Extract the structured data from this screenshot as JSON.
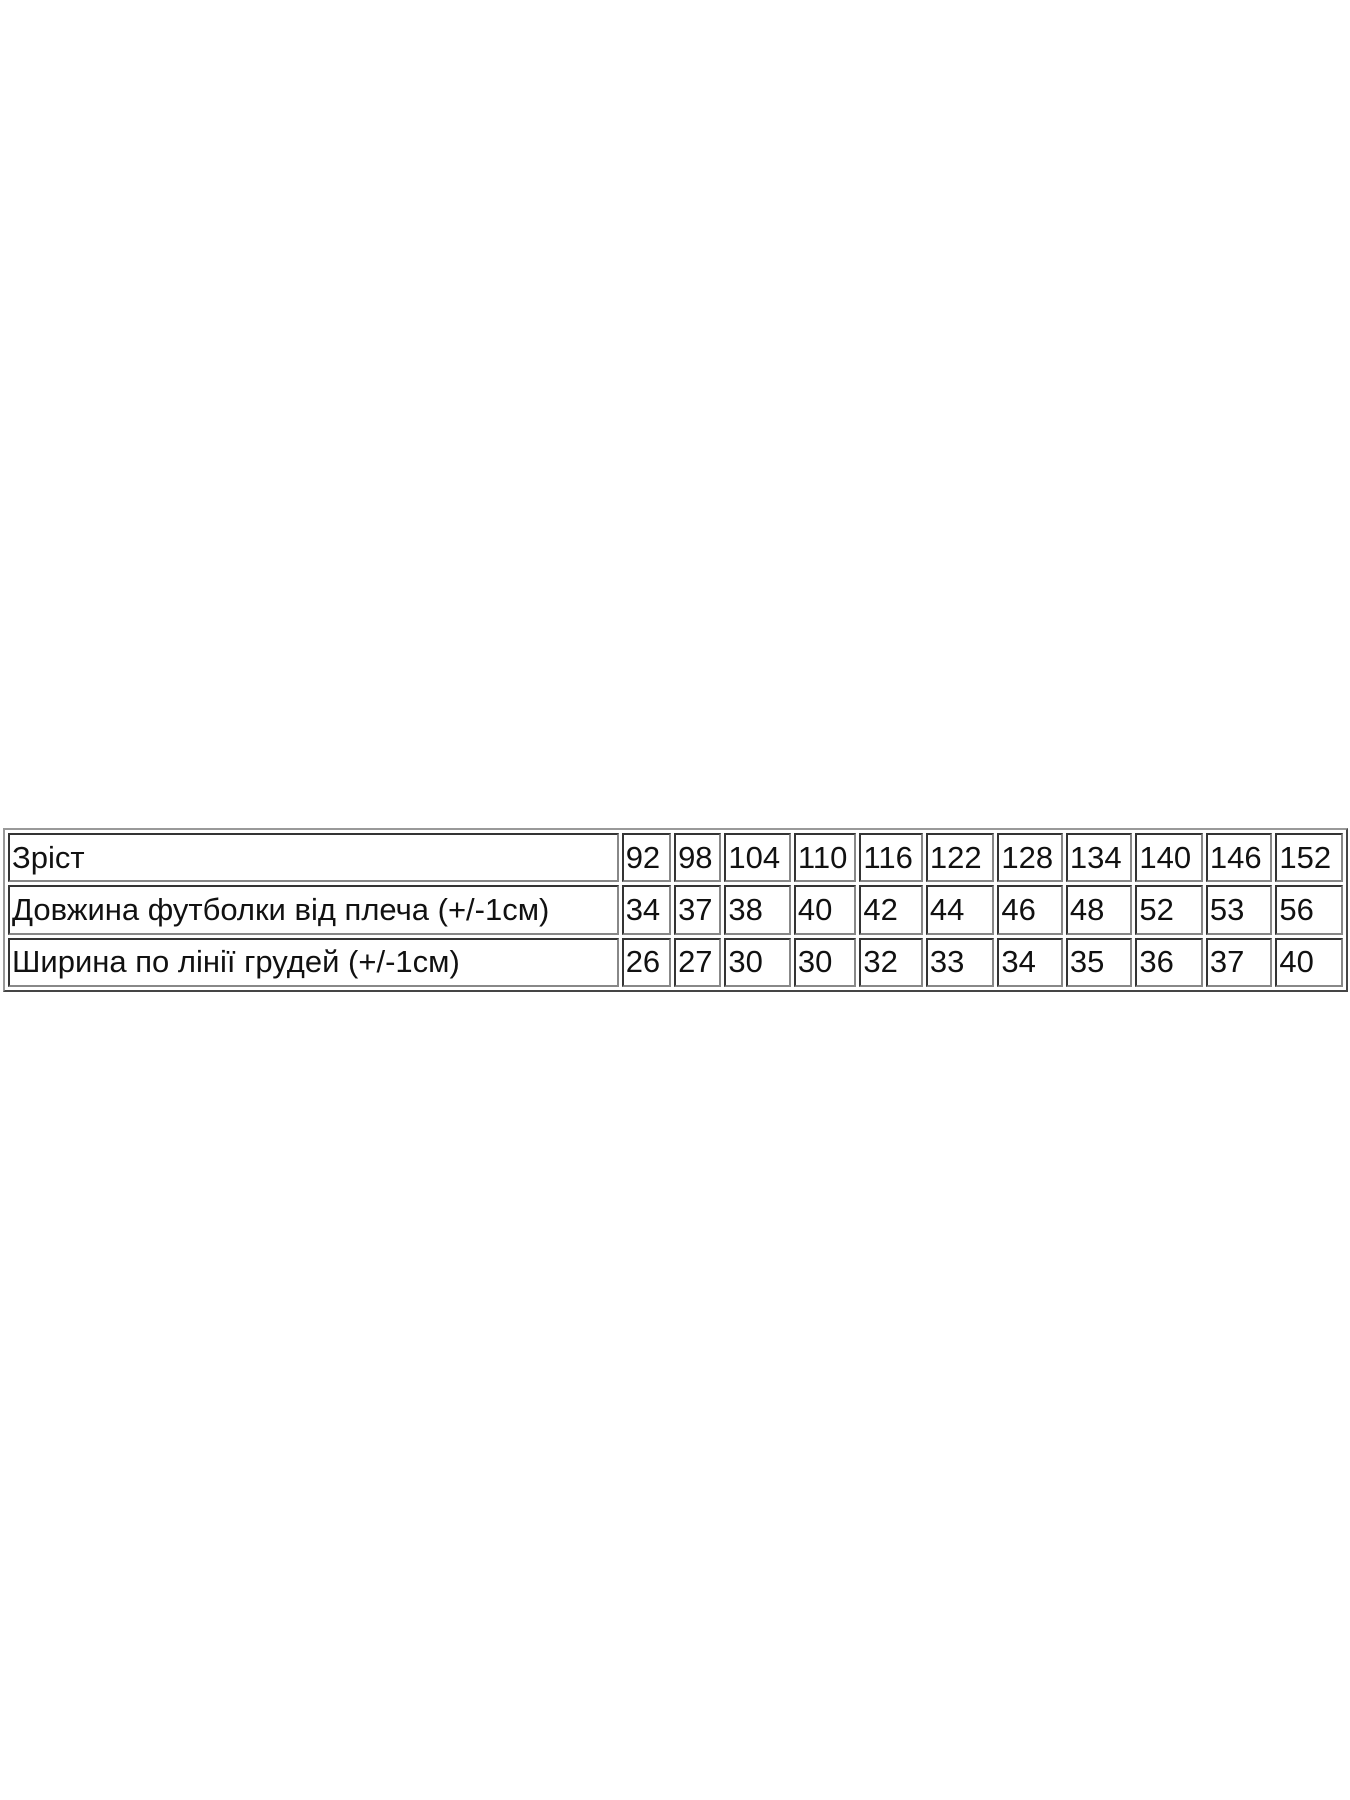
{
  "table": {
    "rows": [
      {
        "label": "Зріст",
        "values": [
          "92",
          "98",
          "104",
          "110",
          "116",
          "122",
          "128",
          "134",
          "140",
          "146",
          "152"
        ]
      },
      {
        "label": "Довжина футболки від плеча (+/-1см)",
        "values": [
          "34",
          "37",
          "38",
          "40",
          "42",
          "44",
          "46",
          "48",
          "52",
          "53",
          "56"
        ]
      },
      {
        "label": "Ширина по лінії грудей (+/-1см)",
        "values": [
          "26",
          "27",
          "30",
          "30",
          "32",
          "33",
          "34",
          "35",
          "36",
          "37",
          "40"
        ]
      }
    ]
  }
}
